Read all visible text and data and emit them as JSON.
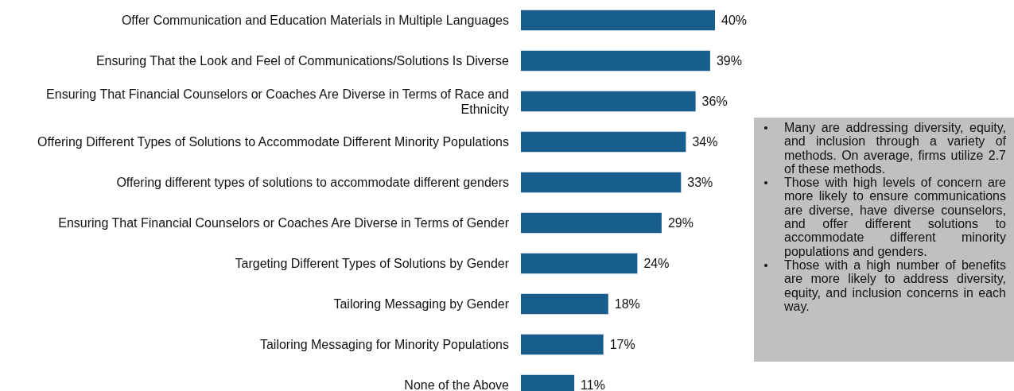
{
  "chart_data": {
    "type": "bar",
    "orientation": "horizontal",
    "categories": [
      "Offer Communication and Education Materials in Multiple Languages",
      "Ensuring That the Look and Feel of Communications/Solutions Is Diverse",
      "Ensuring That Financial Counselors or Coaches Are Diverse in Terms of Race and Ethnicity",
      "Offering Different Types of Solutions to Accommodate Different Minority Populations",
      "Offering different types of solutions to accommodate different genders",
      "Ensuring That Financial Counselors or Coaches Are Diverse in Terms of Gender",
      "Targeting Different Types of Solutions by Gender",
      "Tailoring Messaging by Gender",
      "Tailoring Messaging for Minority Populations",
      "None of the Above"
    ],
    "values": [
      40,
      39,
      36,
      34,
      33,
      29,
      24,
      18,
      17,
      11
    ],
    "value_labels": [
      "40%",
      "39%",
      "36%",
      "34%",
      "33%",
      "29%",
      "24%",
      "18%",
      "17%",
      "11%"
    ],
    "color": "#175d8d",
    "annotations": [
      "Many are addressing diversity, equity, and inclusion through a variety of methods. On average, firms utilize 2.7 of these methods.",
      "Those with high levels of concern are more likely to ensure communications are diverse, have diverse counselors, and offer different solutions to accommodate different minority populations and genders.",
      "Those with a high number of benefits are more likely to address diversity, equity, and inclusion concerns in each way."
    ]
  }
}
